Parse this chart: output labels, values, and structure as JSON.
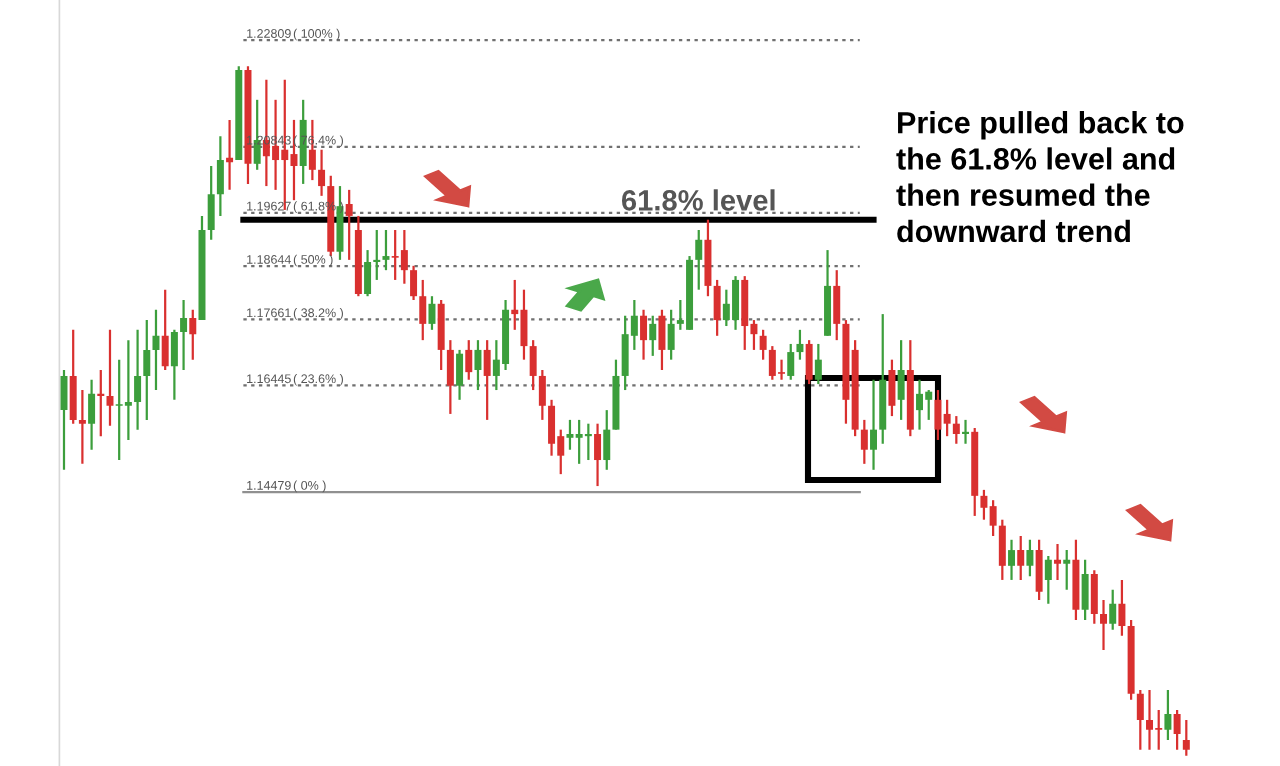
{
  "chart_data": {
    "type": "candlestick",
    "categories": [
      null,
      null,
      null,
      null,
      null,
      null,
      null,
      null,
      null,
      null,
      null,
      null,
      null,
      null,
      null,
      null,
      null,
      null,
      null,
      null,
      null,
      null,
      null,
      null,
      null,
      null,
      null,
      null,
      null,
      null,
      null,
      null,
      null,
      null,
      null,
      null,
      null,
      null,
      null,
      null,
      null,
      null,
      null,
      null,
      null,
      null,
      null,
      null,
      null,
      null,
      null,
      null,
      null,
      null,
      null,
      null,
      null,
      null,
      null,
      null,
      null,
      null,
      null,
      null,
      null,
      null,
      null,
      null,
      null,
      null,
      null,
      null,
      null,
      null,
      null,
      null,
      null,
      null,
      null,
      null,
      null,
      null,
      null,
      null,
      null,
      null,
      null,
      null,
      null,
      null,
      null,
      null,
      null,
      null,
      null,
      null,
      null,
      null,
      null,
      null,
      null,
      null,
      null,
      null,
      null,
      null,
      null,
      null,
      null,
      null,
      null,
      null,
      null,
      null,
      null,
      null,
      null,
      null,
      null,
      null,
      null,
      null,
      null
    ],
    "ohlc": [
      [
        1.1599,
        1.1673,
        1.1489,
        1.1662
      ],
      [
        1.1662,
        1.1747,
        1.1574,
        1.1581
      ],
      [
        1.1581,
        1.1636,
        1.15,
        1.1574
      ],
      [
        1.1574,
        1.1655,
        1.1526,
        1.1629
      ],
      [
        1.1629,
        1.1673,
        1.1551,
        1.1625
      ],
      [
        1.1625,
        1.1747,
        1.157,
        1.1607
      ],
      [
        1.1607,
        1.1692,
        1.1507,
        1.161
      ],
      [
        1.1607,
        1.1728,
        1.1544,
        1.1614
      ],
      [
        1.1614,
        1.1747,
        1.1563,
        1.1662
      ],
      [
        1.1662,
        1.1765,
        1.1581,
        1.171
      ],
      [
        1.171,
        1.1784,
        1.1636,
        1.1736
      ],
      [
        1.1736,
        1.1821,
        1.1673,
        1.168
      ],
      [
        1.168,
        1.1747,
        1.1618,
        1.1743
      ],
      [
        1.1743,
        1.1802,
        1.1673,
        1.1769
      ],
      [
        1.1769,
        1.1784,
        1.1692,
        1.1739
      ],
      [
        1.1765,
        1.1957,
        1.1765,
        1.1931
      ],
      [
        1.1931,
        1.2049,
        1.1913,
        1.1997
      ],
      [
        1.1997,
        1.2104,
        1.1957,
        1.206
      ],
      [
        1.2064,
        1.2134,
        1.2005,
        1.2056
      ],
      [
        1.206,
        1.2233,
        1.206,
        1.2226
      ],
      [
        1.2226,
        1.2233,
        1.2016,
        1.2053
      ],
      [
        1.2053,
        1.2171,
        1.2042,
        1.2097
      ],
      [
        1.2097,
        1.2208,
        1.2012,
        1.2067
      ],
      [
        1.2086,
        1.2171,
        1.2005,
        1.206
      ],
      [
        1.2079,
        1.2208,
        1.1968,
        1.206
      ],
      [
        1.2071,
        1.2134,
        1.1986,
        1.2049
      ],
      [
        1.2049,
        1.2171,
        1.2016,
        1.2134
      ],
      [
        1.2079,
        1.2134,
        1.2023,
        1.2042
      ],
      [
        1.2042,
        1.2079,
        1.1994,
        1.2012
      ],
      [
        1.2012,
        1.2031,
        1.1883,
        1.1891
      ],
      [
        1.1891,
        1.2012,
        1.1876,
        1.1975
      ],
      [
        1.1979,
        1.2005,
        1.1876,
        1.1957
      ],
      [
        1.1931,
        1.1957,
        1.1809,
        1.1813
      ],
      [
        1.1813,
        1.1894,
        1.1809,
        1.1872
      ],
      [
        1.1872,
        1.1931,
        1.1839,
        1.1876
      ],
      [
        1.1876,
        1.1931,
        1.1857,
        1.1883
      ],
      [
        1.1883,
        1.1931,
        1.1839,
        1.188
      ],
      [
        1.1894,
        1.1931,
        1.1832,
        1.1857
      ],
      [
        1.1857,
        1.1865,
        1.1802,
        1.1809
      ],
      [
        1.1809,
        1.1839,
        1.1728,
        1.1758
      ],
      [
        1.1758,
        1.1809,
        1.1747,
        1.1795
      ],
      [
        1.1795,
        1.1802,
        1.1673,
        1.171
      ],
      [
        1.171,
        1.1728,
        1.1592,
        1.1644
      ],
      [
        1.1644,
        1.171,
        1.1618,
        1.1703
      ],
      [
        1.171,
        1.1728,
        1.1655,
        1.1669
      ],
      [
        1.1673,
        1.1728,
        1.1636,
        1.171
      ],
      [
        1.171,
        1.1728,
        1.1581,
        1.1662
      ],
      [
        1.1662,
        1.1728,
        1.1636,
        1.1692
      ],
      [
        1.1684,
        1.1802,
        1.1673,
        1.1784
      ],
      [
        1.1784,
        1.1839,
        1.1747,
        1.1776
      ],
      [
        1.1784,
        1.1821,
        1.1692,
        1.1717
      ],
      [
        1.1717,
        1.1728,
        1.1636,
        1.1662
      ],
      [
        1.1662,
        1.1673,
        1.1581,
        1.1607
      ],
      [
        1.1607,
        1.1618,
        1.1515,
        1.1537
      ],
      [
        1.1551,
        1.1563,
        1.1481,
        1.1515
      ],
      [
        1.1548,
        1.1581,
        1.1526,
        1.1555
      ],
      [
        1.1548,
        1.1581,
        1.15,
        1.1555
      ],
      [
        1.1551,
        1.1574,
        1.1507,
        1.1555
      ],
      [
        1.1555,
        1.1574,
        1.1459,
        1.1507
      ],
      [
        1.1507,
        1.1599,
        1.1489,
        1.1563
      ],
      [
        1.1563,
        1.1692,
        1.1563,
        1.1662
      ],
      [
        1.1662,
        1.1773,
        1.1636,
        1.1739
      ],
      [
        1.1736,
        1.1802,
        1.171,
        1.1773
      ],
      [
        1.1773,
        1.1784,
        1.1692,
        1.1728
      ],
      [
        1.1728,
        1.1773,
        1.1699,
        1.1758
      ],
      [
        1.1773,
        1.1784,
        1.1673,
        1.171
      ],
      [
        1.171,
        1.1784,
        1.1692,
        1.1758
      ],
      [
        1.1758,
        1.1802,
        1.1747,
        1.1765
      ],
      [
        1.1747,
        1.1883,
        1.1747,
        1.1876
      ],
      [
        1.1876,
        1.1931,
        1.1821,
        1.1913
      ],
      [
        1.1913,
        1.195,
        1.1809,
        1.1828
      ],
      [
        1.1828,
        1.1839,
        1.1736,
        1.1765
      ],
      [
        1.1765,
        1.1821,
        1.1754,
        1.1795
      ],
      [
        1.1765,
        1.1846,
        1.1747,
        1.1839
      ],
      [
        1.1839,
        1.1846,
        1.171,
        1.1754
      ],
      [
        1.1758,
        1.1765,
        1.171,
        1.1739
      ],
      [
        1.1736,
        1.1747,
        1.1692,
        1.171
      ],
      [
        1.171,
        1.1717,
        1.1655,
        1.1662
      ],
      [
        1.1669,
        1.1692,
        1.1655,
        1.1666
      ],
      [
        1.1662,
        1.1721,
        1.1655,
        1.1706
      ],
      [
        1.1706,
        1.1747,
        1.1692,
        1.1721
      ],
      [
        1.1721,
        1.1728,
        1.1647,
        1.1655
      ],
      [
        1.1655,
        1.1721,
        1.1647,
        1.1692
      ],
      [
        1.1736,
        1.1894,
        1.1736,
        1.1828
      ],
      [
        1.1828,
        1.1857,
        1.1728,
        1.1758
      ],
      [
        1.1758,
        1.1765,
        1.1574,
        1.1618
      ],
      [
        1.171,
        1.1728,
        1.1551,
        1.1563
      ],
      [
        1.1563,
        1.1581,
        1.15,
        1.1526
      ],
      [
        1.1526,
        1.1655,
        1.1489,
        1.1563
      ],
      [
        1.1563,
        1.1776,
        1.1537,
        1.1655
      ],
      [
        1.1673,
        1.1692,
        1.1588,
        1.1607
      ],
      [
        1.1618,
        1.1728,
        1.1581,
        1.1673
      ],
      [
        1.1673,
        1.1728,
        1.1551,
        1.1563
      ],
      [
        1.1599,
        1.1655,
        1.1563,
        1.1629
      ],
      [
        1.1618,
        1.1636,
        1.1581,
        1.1633
      ],
      [
        1.1618,
        1.1636,
        1.1544,
        1.1563
      ],
      [
        1.1592,
        1.1618,
        1.1551,
        1.1574
      ],
      [
        1.1574,
        1.1588,
        1.1537,
        1.1555
      ],
      [
        1.1555,
        1.1581,
        1.1537,
        1.1559
      ],
      [
        1.1559,
        1.1566,
        1.1404,
        1.1441
      ],
      [
        1.1441,
        1.1452,
        1.1397,
        1.1419
      ],
      [
        1.1422,
        1.1433,
        1.1367,
        1.1386
      ],
      [
        1.1386,
        1.1397,
        1.1286,
        1.1312
      ],
      [
        1.1312,
        1.136,
        1.1286,
        1.1341
      ],
      [
        1.1341,
        1.1367,
        1.1286,
        1.1312
      ],
      [
        1.1312,
        1.136,
        1.1293,
        1.1341
      ],
      [
        1.1341,
        1.136,
        1.1249,
        1.1264
      ],
      [
        1.1286,
        1.133,
        1.1242,
        1.1323
      ],
      [
        1.1323,
        1.1352,
        1.1286,
        1.1316
      ],
      [
        1.1316,
        1.1341,
        1.1268,
        1.1323
      ],
      [
        1.1323,
        1.136,
        1.1212,
        1.1231
      ],
      [
        1.1231,
        1.1323,
        1.1212,
        1.1297
      ],
      [
        1.1297,
        1.1304,
        1.1205,
        1.1223
      ],
      [
        1.1223,
        1.1249,
        1.1157,
        1.1205
      ],
      [
        1.1205,
        1.1268,
        1.1194,
        1.1242
      ],
      [
        1.1242,
        1.1286,
        1.1183,
        1.1201
      ],
      [
        1.1201,
        1.1212,
        1.1065,
        1.1076
      ],
      [
        1.1076,
        1.1083,
        1.0973,
        1.1028
      ],
      [
        1.1028,
        1.1083,
        1.0973,
        1.101
      ],
      [
        1.1013,
        1.1046,
        1.0973,
        1.101
      ],
      [
        1.101,
        1.1083,
        1.0991,
        1.1039
      ],
      [
        1.1039,
        1.1046,
        1.0973,
        1.1002
      ],
      [
        1.0991,
        1.1028,
        1.0962,
        1.0973
      ]
    ],
    "colors": [
      "#3c9e3c",
      "#d9302f",
      "#d9302f",
      "#3c9e3c",
      "#d9302f",
      "#d9302f",
      "#3c9e3c",
      "#3c9e3c",
      "#3c9e3c",
      "#3c9e3c",
      "#3c9e3c",
      "#d9302f",
      "#3c9e3c",
      "#3c9e3c",
      "#d9302f",
      "#3c9e3c",
      "#3c9e3c",
      "#3c9e3c",
      "#d9302f",
      "#3c9e3c",
      "#d9302f",
      "#3c9e3c",
      "#d9302f",
      "#d9302f",
      "#d9302f",
      "#d9302f",
      "#3c9e3c",
      "#d9302f",
      "#d9302f",
      "#d9302f",
      "#3c9e3c",
      "#d9302f",
      "#d9302f",
      "#3c9e3c",
      "#3c9e3c",
      "#3c9e3c",
      "#d9302f",
      "#d9302f",
      "#d9302f",
      "#d9302f",
      "#3c9e3c",
      "#d9302f",
      "#d9302f",
      "#3c9e3c",
      "#d9302f",
      "#3c9e3c",
      "#d9302f",
      "#3c9e3c",
      "#3c9e3c",
      "#d9302f",
      "#d9302f",
      "#d9302f",
      "#d9302f",
      "#d9302f",
      "#d9302f",
      "#3c9e3c",
      "#3c9e3c",
      "#3c9e3c",
      "#d9302f",
      "#3c9e3c",
      "#3c9e3c",
      "#3c9e3c",
      "#3c9e3c",
      "#d9302f",
      "#3c9e3c",
      "#d9302f",
      "#3c9e3c",
      "#3c9e3c",
      "#3c9e3c",
      "#3c9e3c",
      "#d9302f",
      "#d9302f",
      "#3c9e3c",
      "#3c9e3c",
      "#d9302f",
      "#d9302f",
      "#d9302f",
      "#d9302f",
      "#d9302f",
      "#3c9e3c",
      "#3c9e3c",
      "#d9302f",
      "#3c9e3c",
      "#3c9e3c",
      "#d9302f",
      "#d9302f",
      "#d9302f",
      "#d9302f",
      "#3c9e3c",
      "#3c9e3c",
      "#d9302f",
      "#3c9e3c",
      "#d9302f",
      "#3c9e3c",
      "#3c9e3c",
      "#d9302f",
      "#d9302f",
      "#d9302f",
      "#3c9e3c",
      "#d9302f",
      "#d9302f",
      "#d9302f",
      "#d9302f",
      "#3c9e3c",
      "#d9302f",
      "#3c9e3c",
      "#d9302f",
      "#3c9e3c",
      "#d9302f",
      "#3c9e3c",
      "#d9302f",
      "#3c9e3c",
      "#d9302f",
      "#d9302f",
      "#3c9e3c",
      "#d9302f",
      "#d9302f",
      "#d9302f",
      "#d9302f",
      "#d9302f",
      "#3c9e3c",
      "#d9302f",
      "#d9302f"
    ],
    "tick_labels": "y",
    "ylim": [
      1.0943,
      1.2355
    ],
    "yticks": [
      1.22809,
      1.20843,
      1.19627,
      1.18644,
      1.17661,
      1.16445,
      1.14479
    ],
    "ref_lines": [
      {
        "axis": "y",
        "value": 1.22809,
        "color": "#707070",
        "line_style": "dotted"
      },
      {
        "axis": "y",
        "value": 1.20843,
        "color": "#707070",
        "line_style": "dotted"
      },
      {
        "axis": "y",
        "value": 1.19627,
        "color": "#707070",
        "line_style": "dotted"
      },
      {
        "axis": "y",
        "value": 1.18644,
        "color": "#707070",
        "line_style": "dotted"
      },
      {
        "axis": "y",
        "value": 1.17661,
        "color": "#707070",
        "line_style": "dotted"
      },
      {
        "axis": "y",
        "value": 1.16445,
        "color": "#707070",
        "line_style": "dotted"
      },
      {
        "axis": "y",
        "value": 1.14479,
        "color": "#909090",
        "line_style": "solid"
      },
      {
        "axis": "y",
        "value": 1.195,
        "label": "61.8% level",
        "color": "#000000",
        "line_style": "solid"
      }
    ],
    "annotations": [
      "Price pulled back to\nthe 61.8% level and\nthen resumed the\ndownward trend",
      {
        "text": "( 100% )",
        "y": 1.22809
      },
      {
        "text": "( 76.4% )",
        "y": 1.20843
      },
      {
        "text": "( 61.8% )",
        "y": 1.19627
      },
      {
        "text": "( 50% )",
        "y": 1.18644
      },
      {
        "text": "( 38.2% )",
        "y": 1.17661
      },
      {
        "text": "( 23.6% )",
        "y": 1.16445
      },
      {
        "text": "( 0% )",
        "y": 1.14479
      }
    ]
  }
}
